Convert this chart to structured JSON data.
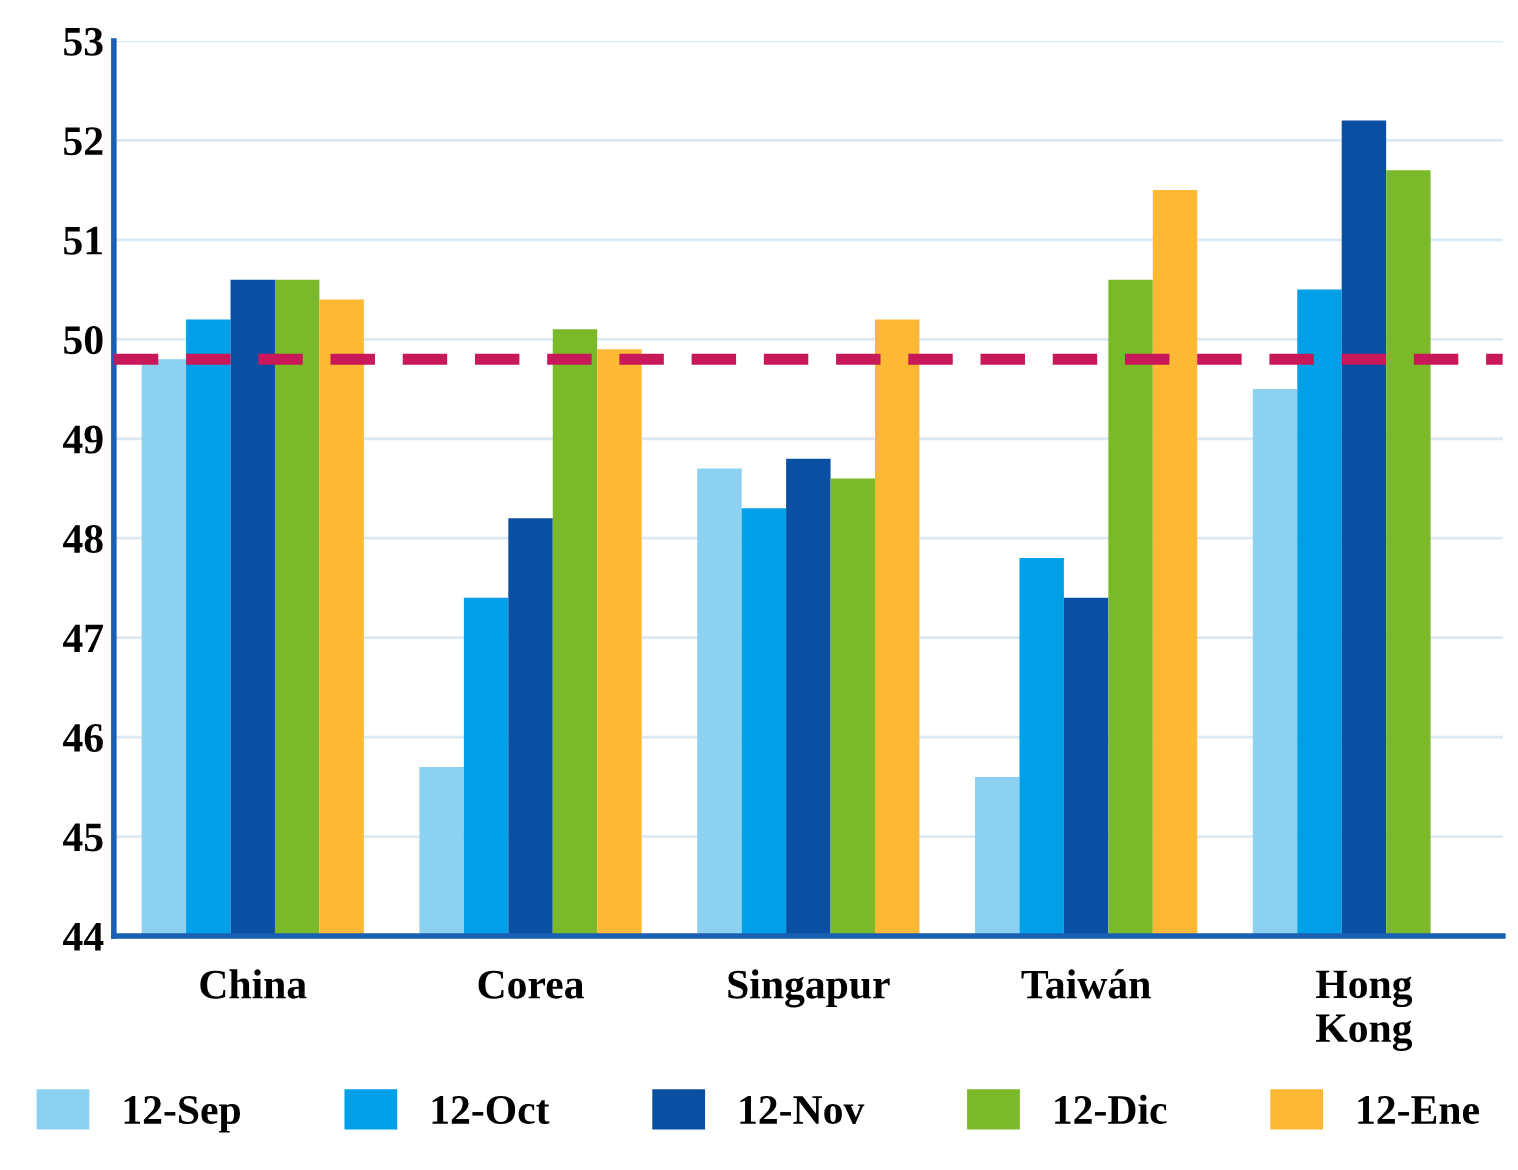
{
  "chart_data": {
    "type": "bar",
    "categories": [
      "China",
      "Corea",
      "Singapur",
      "Taiwán",
      "Hong\nKong"
    ],
    "series": [
      {
        "name": "12-Sep",
        "color": "#8dd1f0",
        "values": [
          49.8,
          45.7,
          48.7,
          45.6,
          49.5
        ]
      },
      {
        "name": "12-Oct",
        "color": "#00a0e9",
        "values": [
          50.2,
          47.4,
          48.3,
          47.8,
          50.5
        ]
      },
      {
        "name": "12-Nov",
        "color": "#0b4fa3",
        "values": [
          50.6,
          48.2,
          48.8,
          47.4,
          52.2
        ]
      },
      {
        "name": "12-Dic",
        "color": "#7ab929",
        "values": [
          50.6,
          50.1,
          48.6,
          50.6,
          51.7
        ]
      },
      {
        "name": "12-Ene",
        "color": "#fdb933",
        "values": [
          50.4,
          49.9,
          50.2,
          51.5,
          null
        ]
      }
    ],
    "ylim": [
      44,
      53
    ],
    "yticks": [
      44,
      45,
      46,
      47,
      48,
      49,
      50,
      51,
      52,
      53
    ],
    "ref_lines": [
      {
        "axis": "y",
        "value": 49.8,
        "color": "#c8185a",
        "line_style": "dashed"
      }
    ],
    "grid": "y",
    "legend": "bottom"
  }
}
